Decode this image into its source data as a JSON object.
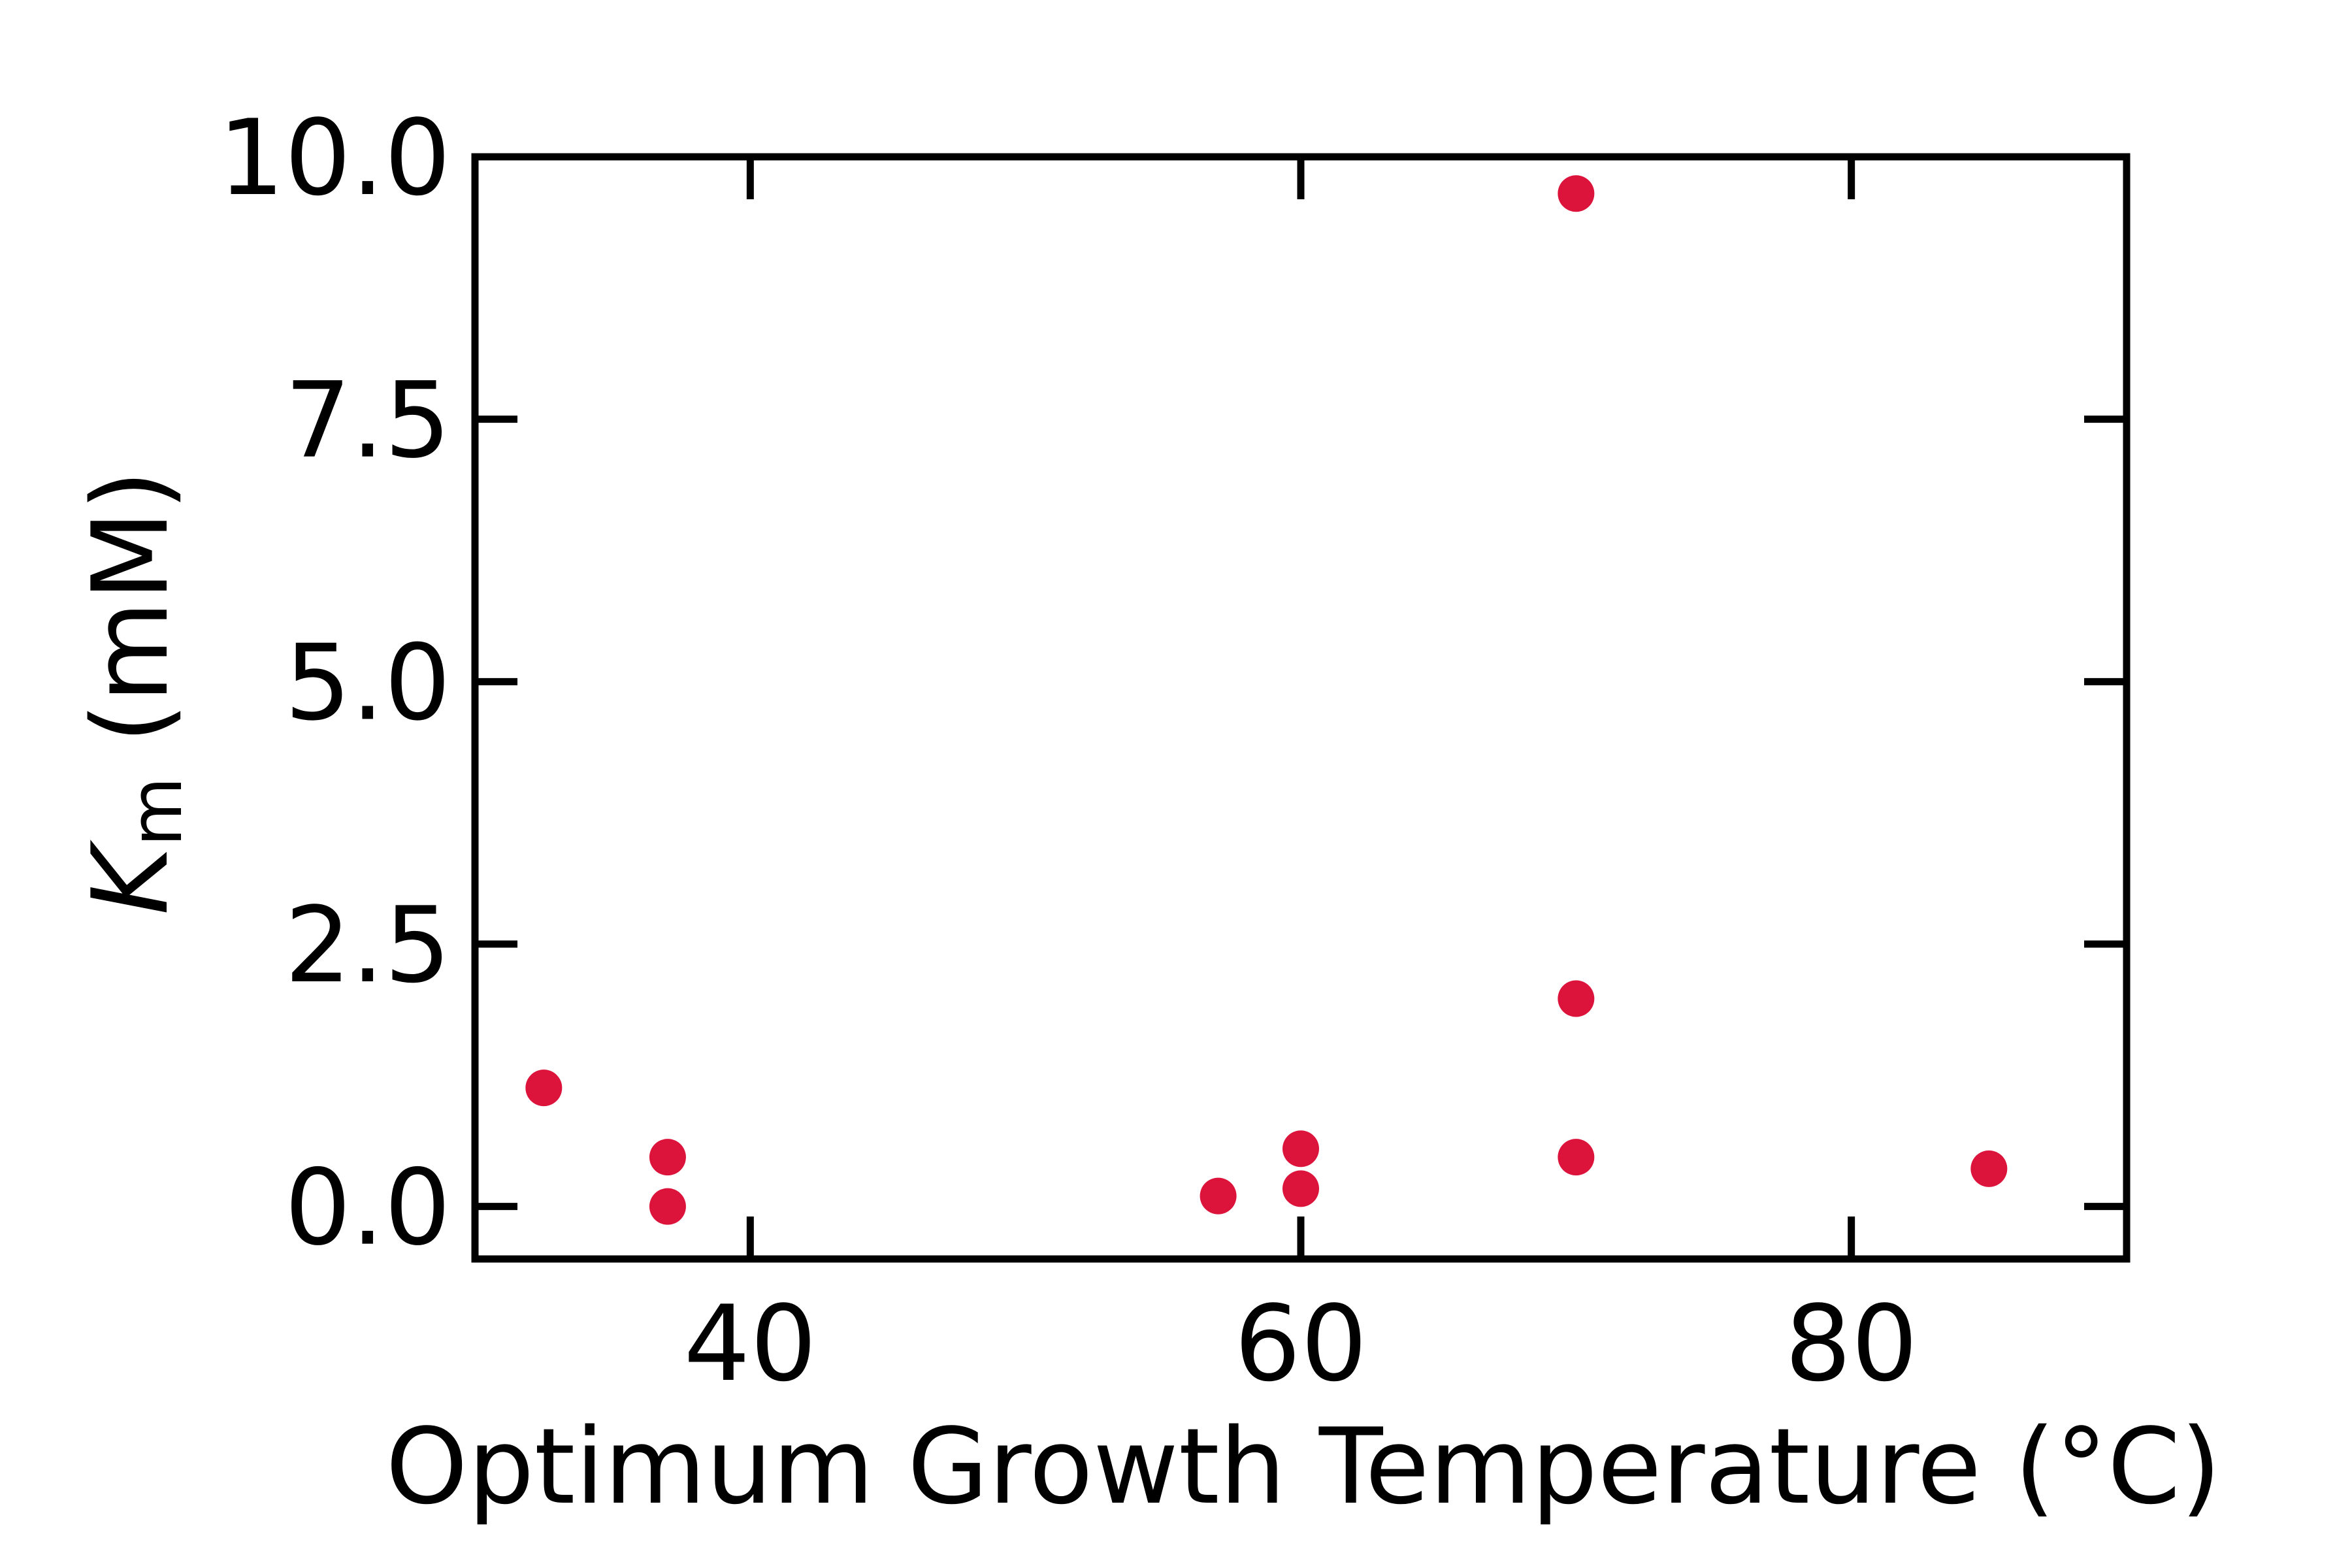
{
  "chart_data": {
    "type": "scatter",
    "xlabel": "Optimum Growth Temperature (°C)",
    "ylabel": {
      "symbol": "K",
      "subscript": "m",
      "unit": " (mM)"
    },
    "xlim": [
      30,
      90
    ],
    "ylim": [
      -0.5,
      10.0
    ],
    "x_ticks": [
      40,
      60,
      80
    ],
    "x_tick_labels": [
      "40",
      "60",
      "80"
    ],
    "y_ticks": [
      0.0,
      2.5,
      5.0,
      7.5,
      10.0
    ],
    "y_tick_labels": [
      "0.0",
      "2.5",
      "5.0",
      "7.5",
      "10.0"
    ],
    "grid": false,
    "legend": "none",
    "marker_color": "#dc143c",
    "points": [
      {
        "x": 32.5,
        "y": 1.13
      },
      {
        "x": 37.0,
        "y": 0.47
      },
      {
        "x": 37.0,
        "y": 0.0
      },
      {
        "x": 57.0,
        "y": 0.1
      },
      {
        "x": 60.0,
        "y": 0.55
      },
      {
        "x": 60.0,
        "y": 0.17
      },
      {
        "x": 70.0,
        "y": 9.65
      },
      {
        "x": 70.0,
        "y": 1.98
      },
      {
        "x": 70.0,
        "y": 0.47
      },
      {
        "x": 85.0,
        "y": 0.36
      }
    ]
  }
}
